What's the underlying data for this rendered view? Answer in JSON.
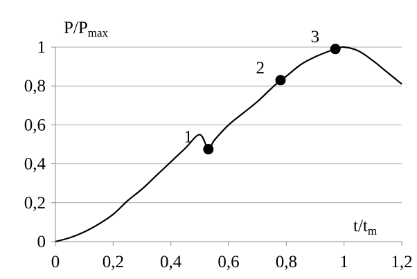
{
  "chart_data": {
    "type": "line",
    "ylabel": {
      "main": "P/P",
      "sub": "max"
    },
    "xlabel": {
      "main": "t/t",
      "sub": "m"
    },
    "xlim": [
      0,
      1.2
    ],
    "ylim": [
      0,
      1
    ],
    "x_ticks": [
      0,
      0.2,
      0.4,
      0.6,
      0.8,
      1.0,
      1.2
    ],
    "x_tick_labels": [
      "0",
      "0,2",
      "0,4",
      "0,6",
      "0,8",
      "1",
      "1,2"
    ],
    "y_ticks": [
      0,
      0.2,
      0.4,
      0.6,
      0.8,
      1.0
    ],
    "y_tick_labels": [
      "0",
      "0,2",
      "0,4",
      "0,6",
      "0,8",
      "1"
    ],
    "grid": "horizontal",
    "series": [
      {
        "x": [
          0,
          0.05,
          0.1,
          0.15,
          0.2,
          0.25,
          0.3,
          0.35,
          0.4,
          0.45,
          0.5,
          0.53,
          0.55,
          0.6,
          0.65,
          0.7,
          0.75,
          0.78,
          0.8,
          0.85,
          0.9,
          0.95,
          0.97,
          1.0,
          1.05,
          1.1,
          1.15,
          1.2
        ],
        "y": [
          0,
          0.02,
          0.05,
          0.09,
          0.14,
          0.21,
          0.27,
          0.34,
          0.41,
          0.48,
          0.55,
          0.475,
          0.52,
          0.6,
          0.66,
          0.72,
          0.79,
          0.83,
          0.85,
          0.91,
          0.95,
          0.98,
          0.99,
          1.0,
          0.98,
          0.93,
          0.87,
          0.81
        ],
        "color": "#000000"
      }
    ],
    "points": [
      {
        "label": "1",
        "x": 0.53,
        "y": 0.475
      },
      {
        "label": "2",
        "x": 0.78,
        "y": 0.83
      },
      {
        "label": "3",
        "x": 0.97,
        "y": 0.99
      }
    ]
  }
}
